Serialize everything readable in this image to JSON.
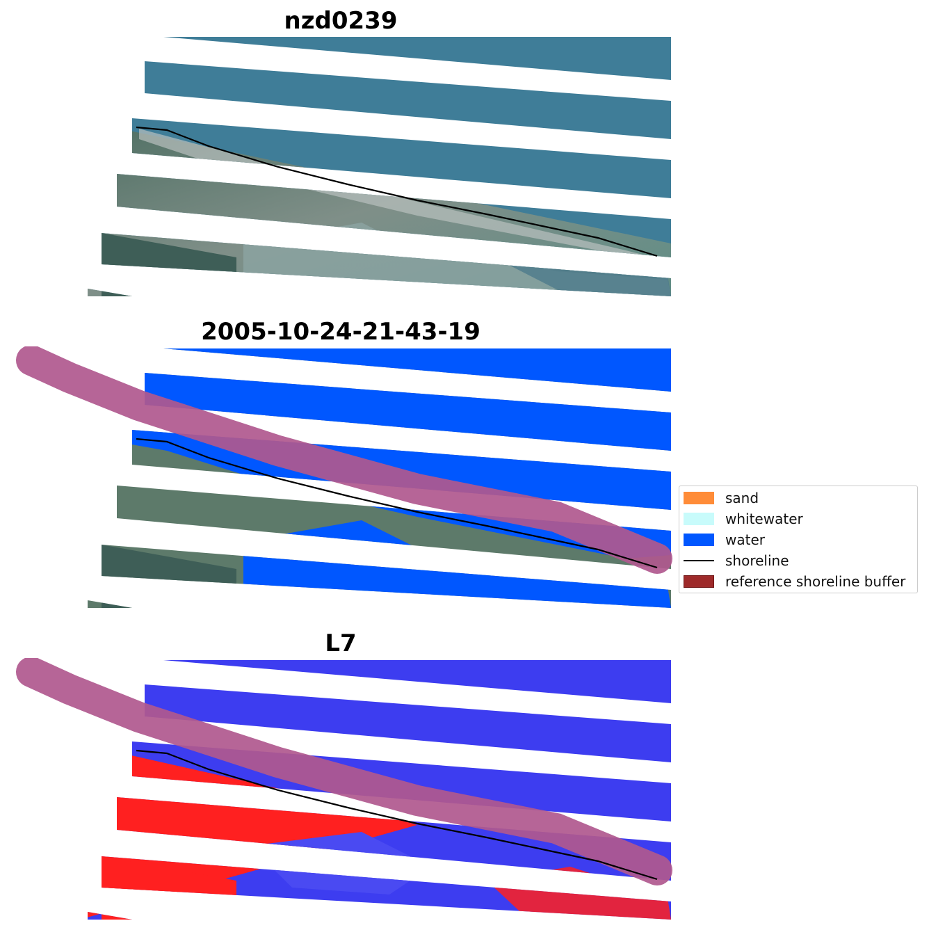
{
  "panels": [
    {
      "title": "nzd0239"
    },
    {
      "title": "2005-10-24-21-43-19"
    },
    {
      "title": "L7"
    }
  ],
  "legend": {
    "items": [
      {
        "label": "sand",
        "kind": "patch",
        "color": "#ff8c38"
      },
      {
        "label": "whitewater",
        "kind": "patch",
        "color": "#c8fbfb"
      },
      {
        "label": "water",
        "kind": "patch",
        "color": "#0057ff"
      },
      {
        "label": "shoreline",
        "kind": "line",
        "color": "#000000"
      },
      {
        "label": "reference shoreline buffer",
        "kind": "patch",
        "color": "#9e2a2a"
      }
    ]
  },
  "colors": {
    "ocean_rgb": "#3f7d98",
    "land_rgb": "#5d7a6a",
    "water_class": "#0057ff",
    "buffer": "#b0588e",
    "index_water": "#3d3df0",
    "index_land": "#ff2020"
  }
}
